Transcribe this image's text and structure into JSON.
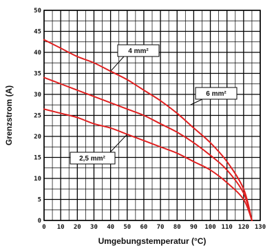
{
  "chart_data": {
    "type": "line",
    "xlabel": "Umgebungstemperatur (°C)",
    "ylabel": "Grenzstrom (A)",
    "xlim": [
      0,
      130
    ],
    "ylim": [
      0,
      50
    ],
    "x_ticks": [
      "0",
      "10",
      "20",
      "30",
      "40",
      "50",
      "60",
      "70",
      "80",
      "90",
      "100",
      "110",
      "120",
      "130"
    ],
    "y_ticks": [
      "0",
      "5",
      "10",
      "15",
      "20",
      "25",
      "30",
      "35",
      "40",
      "45",
      "50"
    ],
    "grid": "on (major 10 °C / 5 A, minor 5 °C / 2.5 A)",
    "line_color": "#e02020",
    "series": [
      {
        "name": "4 mm²",
        "x": [
          0,
          10,
          20,
          30,
          40,
          50,
          60,
          70,
          80,
          90,
          100,
          110,
          120,
          125
        ],
        "y": [
          43,
          41,
          39,
          37.5,
          35.5,
          33.5,
          31,
          28.5,
          25.5,
          22,
          18.5,
          14,
          7.5,
          0
        ]
      },
      {
        "name": "6 mm²",
        "x": [
          0,
          10,
          20,
          30,
          40,
          50,
          60,
          70,
          80,
          90,
          100,
          110,
          120,
          125
        ],
        "y": [
          34,
          32.5,
          31,
          29.5,
          28,
          26.5,
          25,
          23,
          21,
          18.5,
          15.5,
          12,
          6.5,
          0
        ]
      },
      {
        "name": "2,5 mm²",
        "x": [
          0,
          10,
          20,
          30,
          40,
          50,
          60,
          70,
          80,
          90,
          100,
          110,
          120,
          125
        ],
        "y": [
          26.5,
          25.5,
          24.5,
          23,
          22,
          20.5,
          19,
          17.5,
          16,
          14,
          12,
          9,
          5,
          0
        ]
      }
    ],
    "annotations": [
      {
        "label": "4 mm²",
        "series": "4 mm²",
        "point": [
          40,
          35.5
        ]
      },
      {
        "label": "6 mm²",
        "series": "6 mm²",
        "point": [
          88,
          27.5
        ]
      },
      {
        "label": "2,5 mm²",
        "series": "2,5 mm²",
        "point": [
          50,
          20.5
        ]
      }
    ]
  }
}
